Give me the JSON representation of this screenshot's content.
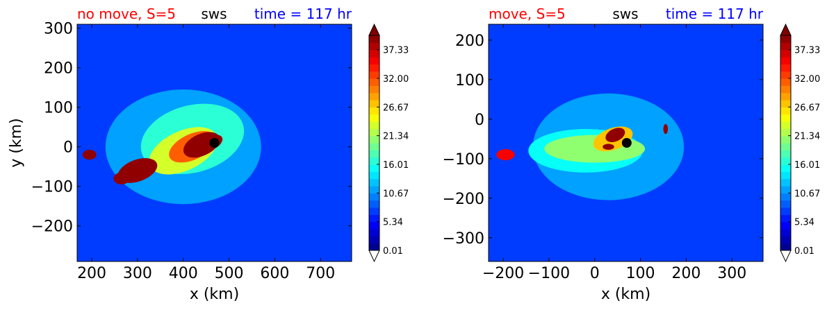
{
  "chart_data": [
    {
      "type": "heatmap",
      "title_left": "no move, S=5",
      "title_center": "sws",
      "title_right": "time = 117 hr",
      "xlabel": "x (km)",
      "ylabel": "y (km)",
      "xlim": [
        168,
        768
      ],
      "ylim": [
        -290,
        310
      ],
      "xticks": [
        200,
        300,
        400,
        500,
        600,
        700
      ],
      "xtick_labels": [
        "200",
        "300",
        "400",
        "500",
        "600",
        "700"
      ],
      "yticks": [
        -200,
        -100,
        0,
        100,
        200,
        300
      ],
      "ytick_labels": [
        "−200",
        "−100",
        "0",
        "100",
        "200",
        "300"
      ],
      "background_value": 7,
      "blobs": [
        {
          "x": 400,
          "y": 0,
          "rx": 340,
          "ry": 290,
          "v": 5,
          "rot": 0
        },
        {
          "x": 420,
          "y": 20,
          "rx": 230,
          "ry": 170,
          "v": 5,
          "rot": -15
        },
        {
          "x": 400,
          "y": -10,
          "rx": 160,
          "ry": 100,
          "v": 7,
          "rot": -25
        },
        {
          "x": 420,
          "y": 0,
          "rx": 110,
          "ry": 65,
          "v": 8,
          "rot": -25
        },
        {
          "x": 300,
          "y": -60,
          "rx": 90,
          "ry": 55,
          "v": 8,
          "rot": -20
        },
        {
          "x": 440,
          "y": 5,
          "rx": 85,
          "ry": 55,
          "v": 10,
          "rot": -25
        },
        {
          "x": 265,
          "y": -80,
          "rx": 35,
          "ry": 30,
          "v": 18,
          "rot": 0
        },
        {
          "x": 195,
          "y": -20,
          "rx": 30,
          "ry": 25,
          "v": 10,
          "rot": 0
        },
        {
          "x": 460,
          "y": 10,
          "rx": 55,
          "ry": 35,
          "v": 18,
          "rot": -25
        }
      ],
      "marker": {
        "x": 468,
        "y": 10
      },
      "colorbar": {
        "min": 0.01,
        "max": 40,
        "levels": 30,
        "tick_values": [
          0.01,
          5.34,
          10.67,
          16.01,
          21.34,
          26.67,
          32.0,
          37.33
        ],
        "tick_labels": [
          "0.01",
          "5.34",
          "10.67",
          "16.01",
          "21.34",
          "26.67",
          "32.00",
          "37.33"
        ],
        "extend": "both"
      }
    },
    {
      "type": "heatmap",
      "title_left": "move, S=5",
      "title_center": "sws",
      "title_right": "time = 117 hr",
      "xlabel": "x (km)",
      "ylabel": "",
      "xlim": [
        -232,
        368
      ],
      "ylim": [
        -360,
        240
      ],
      "xticks": [
        -200,
        -100,
        0,
        100,
        200,
        300
      ],
      "xtick_labels": [
        "−200",
        "−100",
        "0",
        "100",
        "200",
        "300"
      ],
      "yticks": [
        -300,
        -200,
        -100,
        0,
        100,
        200
      ],
      "ytick_labels": [
        "−300",
        "−200",
        "−100",
        "0",
        "100",
        "200"
      ],
      "background_value": 7,
      "blobs": [
        {
          "x": 30,
          "y": -70,
          "rx": 330,
          "ry": 270,
          "v": 5,
          "rot": 0
        },
        {
          "x": -20,
          "y": -80,
          "rx": 250,
          "ry": 110,
          "v": 4,
          "rot": 0
        },
        {
          "x": 0,
          "y": -75,
          "rx": 220,
          "ry": 70,
          "v": 5,
          "rot": 0
        },
        {
          "x": 40,
          "y": -50,
          "rx": 90,
          "ry": 55,
          "v": 6,
          "rot": -20
        },
        {
          "x": -195,
          "y": -90,
          "rx": 40,
          "ry": 28,
          "v": 9,
          "rot": 0
        },
        {
          "x": 45,
          "y": -40,
          "rx": 45,
          "ry": 32,
          "v": 9,
          "rot": -25
        },
        {
          "x": 30,
          "y": -70,
          "rx": 25,
          "ry": 15,
          "v": 9,
          "rot": 0
        },
        {
          "x": 155,
          "y": -25,
          "rx": 10,
          "ry": 25,
          "v": 8,
          "rot": 0
        }
      ],
      "marker": {
        "x": 70,
        "y": -60
      },
      "colorbar": {
        "min": 0.01,
        "max": 40,
        "levels": 30,
        "tick_values": [
          0.01,
          5.34,
          10.67,
          16.01,
          21.34,
          26.67,
          32.0,
          37.33
        ],
        "tick_labels": [
          "0.01",
          "5.34",
          "10.67",
          "16.01",
          "21.34",
          "26.67",
          "32.00",
          "37.33"
        ],
        "extend": "both"
      }
    }
  ]
}
